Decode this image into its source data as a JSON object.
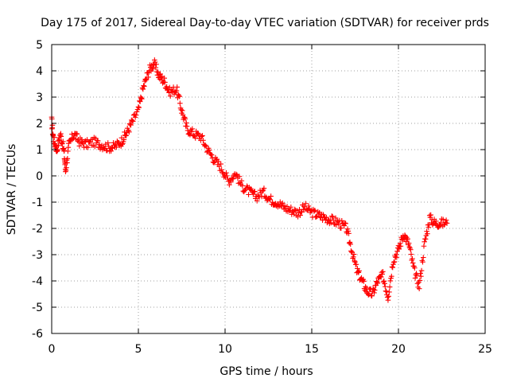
{
  "chart_data": {
    "type": "scatter",
    "title": "Day 175 of 2017, Sidereal Day-to-day VTEC variation (SDTVAR) for receiver prds",
    "xlabel": "GPS time / hours",
    "ylabel": "SDTVAR / TECUs",
    "xlim": [
      0,
      25
    ],
    "ylim": [
      -6,
      5
    ],
    "xticks": [
      0,
      5,
      10,
      15,
      20,
      25
    ],
    "yticks": [
      5,
      4,
      3,
      2,
      1,
      0,
      -1,
      -2,
      -3,
      -4,
      -5,
      -6
    ],
    "grid": true,
    "marker": "+",
    "marker_color": "#ff0000",
    "series": [
      {
        "name": "SDTVAR",
        "approx_centerline": [
          [
            0.0,
            2.1
          ],
          [
            0.1,
            1.4
          ],
          [
            0.3,
            1.0
          ],
          [
            0.5,
            1.6
          ],
          [
            0.7,
            1.0
          ],
          [
            0.8,
            0.2
          ],
          [
            1.0,
            1.2
          ],
          [
            1.3,
            1.6
          ],
          [
            1.6,
            1.3
          ],
          [
            2.0,
            1.2
          ],
          [
            2.4,
            1.3
          ],
          [
            2.8,
            1.2
          ],
          [
            3.2,
            1.1
          ],
          [
            3.6,
            1.1
          ],
          [
            4.0,
            1.3
          ],
          [
            4.3,
            1.6
          ],
          [
            4.6,
            2.0
          ],
          [
            5.0,
            2.5
          ],
          [
            5.3,
            3.4
          ],
          [
            5.6,
            4.0
          ],
          [
            5.9,
            4.3
          ],
          [
            6.2,
            3.8
          ],
          [
            6.5,
            3.6
          ],
          [
            6.8,
            3.2
          ],
          [
            7.2,
            3.3
          ],
          [
            7.5,
            2.5
          ],
          [
            7.8,
            1.8
          ],
          [
            8.2,
            1.6
          ],
          [
            8.6,
            1.5
          ],
          [
            9.0,
            1.0
          ],
          [
            9.4,
            0.6
          ],
          [
            9.8,
            0.3
          ],
          [
            10.2,
            -0.2
          ],
          [
            10.6,
            0.1
          ],
          [
            11.0,
            -0.4
          ],
          [
            11.4,
            -0.6
          ],
          [
            11.8,
            -0.8
          ],
          [
            12.2,
            -0.6
          ],
          [
            12.6,
            -0.9
          ],
          [
            13.0,
            -1.0
          ],
          [
            13.4,
            -1.2
          ],
          [
            13.8,
            -1.3
          ],
          [
            14.2,
            -1.4
          ],
          [
            14.6,
            -1.2
          ],
          [
            15.0,
            -1.4
          ],
          [
            15.4,
            -1.5
          ],
          [
            15.8,
            -1.6
          ],
          [
            16.2,
            -1.7
          ],
          [
            16.6,
            -1.8
          ],
          [
            17.0,
            -2.0
          ],
          [
            17.3,
            -2.8
          ],
          [
            17.6,
            -3.6
          ],
          [
            17.9,
            -4.0
          ],
          [
            18.2,
            -4.4
          ],
          [
            18.5,
            -4.5
          ],
          [
            18.8,
            -4.0
          ],
          [
            19.1,
            -3.8
          ],
          [
            19.4,
            -4.6
          ],
          [
            19.7,
            -3.2
          ],
          [
            20.0,
            -2.8
          ],
          [
            20.3,
            -2.2
          ],
          [
            20.6,
            -2.6
          ],
          [
            20.9,
            -3.6
          ],
          [
            21.2,
            -4.2
          ],
          [
            21.5,
            -2.6
          ],
          [
            21.8,
            -1.6
          ],
          [
            22.1,
            -1.8
          ],
          [
            22.4,
            -1.8
          ],
          [
            22.8,
            -1.8
          ]
        ]
      }
    ]
  }
}
